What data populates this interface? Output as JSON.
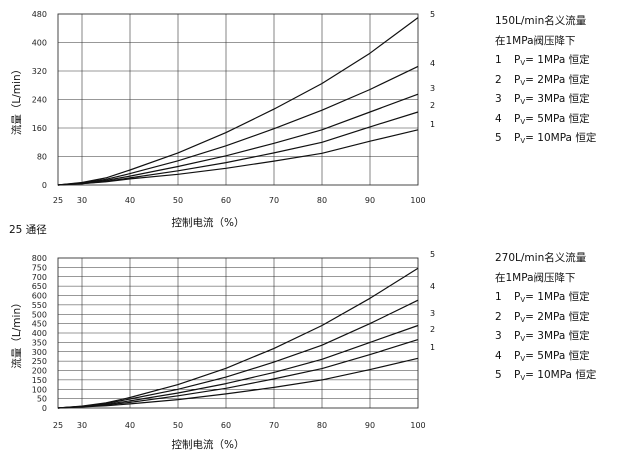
{
  "colors": {
    "curve": "#111111",
    "grid": "#333333",
    "background": "#ffffff"
  },
  "section_label": "25 通径",
  "chart_data": [
    {
      "type": "line",
      "xlabel": "控制电流（%）",
      "ylabel": "流量（L/min）",
      "xlim": [
        25,
        100
      ],
      "ylim": [
        0,
        480
      ],
      "xticks": [
        "25",
        "30",
        "40",
        "50",
        "60",
        "70",
        "80",
        "90",
        "100"
      ],
      "yticks": [
        "0",
        "80",
        "160",
        "240",
        "320",
        "400",
        "480"
      ],
      "grid": true,
      "series": [
        {
          "name": "1",
          "points": [
            [
              25,
              0
            ],
            [
              30,
              4
            ],
            [
              35,
              9
            ],
            [
              40,
              17
            ],
            [
              50,
              30
            ],
            [
              60,
              47
            ],
            [
              70,
              67
            ],
            [
              80,
              89
            ],
            [
              90,
              123
            ],
            [
              100,
              155
            ]
          ]
        },
        {
          "name": "2",
          "points": [
            [
              25,
              0
            ],
            [
              30,
              4
            ],
            [
              35,
              10
            ],
            [
              40,
              20
            ],
            [
              50,
              40
            ],
            [
              60,
              63
            ],
            [
              70,
              90
            ],
            [
              80,
              120
            ],
            [
              90,
              163
            ],
            [
              100,
              205
            ]
          ]
        },
        {
          "name": "3",
          "points": [
            [
              25,
              0
            ],
            [
              30,
              5
            ],
            [
              35,
              13
            ],
            [
              40,
              25
            ],
            [
              50,
              52
            ],
            [
              60,
              82
            ],
            [
              70,
              117
            ],
            [
              80,
              155
            ],
            [
              90,
              205
            ],
            [
              100,
              255
            ]
          ]
        },
        {
          "name": "4",
          "points": [
            [
              25,
              0
            ],
            [
              30,
              6
            ],
            [
              35,
              16
            ],
            [
              40,
              32
            ],
            [
              50,
              68
            ],
            [
              60,
              110
            ],
            [
              70,
              158
            ],
            [
              80,
              210
            ],
            [
              90,
              268
            ],
            [
              100,
              333
            ]
          ]
        },
        {
          "name": "5",
          "points": [
            [
              25,
              0
            ],
            [
              30,
              7
            ],
            [
              35,
              20
            ],
            [
              40,
              42
            ],
            [
              50,
              90
            ],
            [
              60,
              147
            ],
            [
              70,
              213
            ],
            [
              80,
              285
            ],
            [
              90,
              370
            ],
            [
              100,
              470
            ]
          ]
        }
      ],
      "legend": {
        "title": "150L/min名义流量",
        "subtitle": "在1MPa阀压降下",
        "items": [
          {
            "num": "1",
            "pressure": "1MPa"
          },
          {
            "num": "2",
            "pressure": "2MPa"
          },
          {
            "num": "3",
            "pressure": "3MPa"
          },
          {
            "num": "4",
            "pressure": "5MPa"
          },
          {
            "num": "5",
            "pressure": "10MPa"
          }
        ],
        "p_symbol": "P",
        "p_subscript": "V",
        "suffix": "恒定"
      }
    },
    {
      "type": "line",
      "xlabel": "控制电流（%）",
      "ylabel": "流量（L/min）",
      "xlim": [
        25,
        100
      ],
      "ylim": [
        0,
        800
      ],
      "xticks": [
        "25",
        "30",
        "40",
        "50",
        "60",
        "70",
        "80",
        "90",
        "100"
      ],
      "yticks": [
        "0",
        "50",
        "100",
        "150",
        "200",
        "250",
        "300",
        "350",
        "400",
        "450",
        "500",
        "550",
        "600",
        "650",
        "700",
        "750",
        "800"
      ],
      "grid": true,
      "series": [
        {
          "name": "1",
          "points": [
            [
              25,
              0
            ],
            [
              30,
              6
            ],
            [
              35,
              12
            ],
            [
              40,
              22
            ],
            [
              50,
              45
            ],
            [
              60,
              75
            ],
            [
              70,
              110
            ],
            [
              80,
              150
            ],
            [
              90,
              205
            ],
            [
              100,
              265
            ]
          ]
        },
        {
          "name": "2",
          "points": [
            [
              25,
              0
            ],
            [
              30,
              7
            ],
            [
              35,
              16
            ],
            [
              40,
              30
            ],
            [
              50,
              65
            ],
            [
              60,
              105
            ],
            [
              70,
              155
            ],
            [
              80,
              210
            ],
            [
              90,
              285
            ],
            [
              100,
              365
            ]
          ]
        },
        {
          "name": "3",
          "points": [
            [
              25,
              0
            ],
            [
              30,
              8
            ],
            [
              35,
              20
            ],
            [
              40,
              38
            ],
            [
              50,
              80
            ],
            [
              60,
              130
            ],
            [
              70,
              190
            ],
            [
              80,
              260
            ],
            [
              90,
              350
            ],
            [
              100,
              440
            ]
          ]
        },
        {
          "name": "4",
          "points": [
            [
              25,
              0
            ],
            [
              30,
              9
            ],
            [
              35,
              24
            ],
            [
              40,
              48
            ],
            [
              50,
              100
            ],
            [
              60,
              165
            ],
            [
              70,
              245
            ],
            [
              80,
              335
            ],
            [
              90,
              450
            ],
            [
              100,
              575
            ]
          ]
        },
        {
          "name": "5",
          "points": [
            [
              25,
              0
            ],
            [
              30,
              10
            ],
            [
              35,
              28
            ],
            [
              40,
              56
            ],
            [
              50,
              125
            ],
            [
              60,
              212
            ],
            [
              70,
              318
            ],
            [
              80,
              440
            ],
            [
              90,
              585
            ],
            [
              100,
              745
            ]
          ]
        }
      ],
      "legend": {
        "title": "270L/min名义流量",
        "subtitle": "在1MPa阀压降下",
        "items": [
          {
            "num": "1",
            "pressure": "1MPa"
          },
          {
            "num": "2",
            "pressure": "2MPa"
          },
          {
            "num": "3",
            "pressure": "3MPa"
          },
          {
            "num": "4",
            "pressure": "5MPa"
          },
          {
            "num": "5",
            "pressure": "10MPa"
          }
        ],
        "p_symbol": "P",
        "p_subscript": "V",
        "suffix": "恒定"
      }
    }
  ]
}
